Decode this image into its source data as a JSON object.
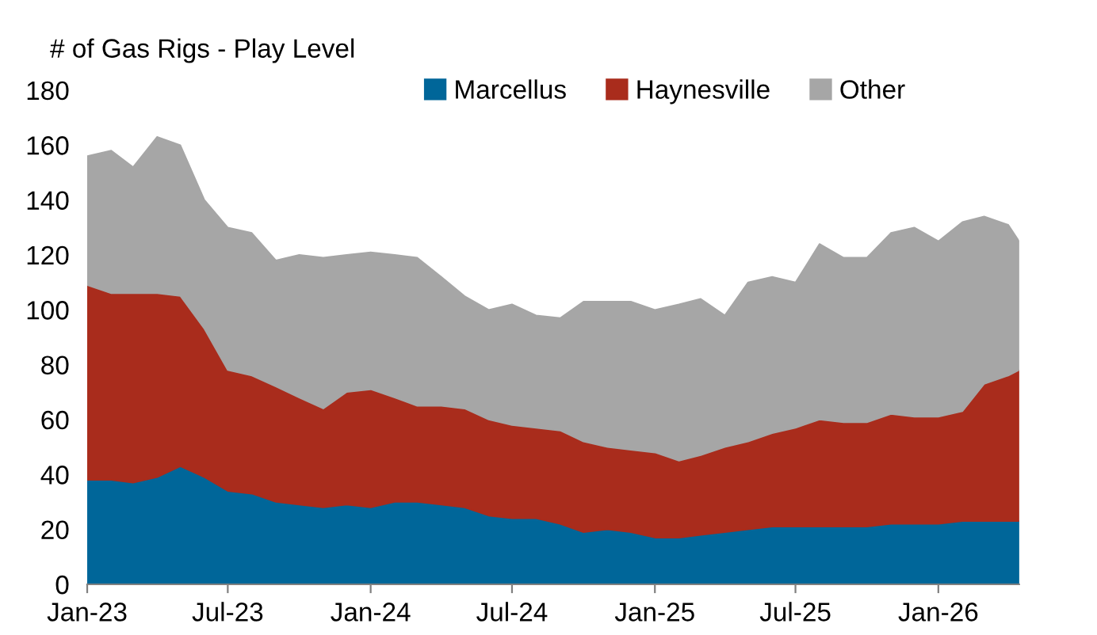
{
  "chart_data": {
    "type": "area",
    "stacked": true,
    "ylabel": "# of Gas Rigs - Play Level",
    "x": [
      "2023-01",
      "2023-02",
      "2023-03",
      "2023-04",
      "2023-05",
      "2023-06",
      "2023-07",
      "2023-08",
      "2023-09",
      "2023-10",
      "2023-11",
      "2023-12",
      "2024-01",
      "2024-02",
      "2024-03",
      "2024-04",
      "2024-05",
      "2024-06",
      "2024-07",
      "2024-08",
      "2024-09",
      "2024-10",
      "2024-11",
      "2024-12",
      "2025-01",
      "2025-02",
      "2025-03",
      "2025-04",
      "2025-05",
      "2025-06",
      "2025-07",
      "2025-08",
      "2025-09",
      "2025-10",
      "2025-11",
      "2025-12",
      "2026-01",
      "2026-02",
      "2026-03",
      "2026-04",
      "2026-04-15"
    ],
    "series": [
      {
        "name": "Marcellus",
        "color": "#006699",
        "values": [
          38,
          38,
          37,
          39,
          43,
          39,
          34,
          33,
          30,
          29,
          28,
          29,
          28,
          30,
          30,
          29,
          28,
          25,
          24,
          24,
          22,
          19,
          20,
          19,
          17,
          17,
          18,
          19,
          20,
          21,
          21,
          21,
          21,
          21,
          22,
          22,
          22,
          23,
          23,
          23,
          23
        ]
      },
      {
        "name": "Haynesville",
        "color": "#a92c1c",
        "values": [
          71,
          68,
          69,
          67,
          62,
          54,
          44,
          43,
          42,
          39,
          36,
          41,
          43,
          38,
          35,
          36,
          36,
          35,
          34,
          33,
          34,
          33,
          30,
          30,
          31,
          28,
          29,
          31,
          32,
          34,
          36,
          39,
          38,
          38,
          40,
          39,
          39,
          40,
          50,
          53,
          55
        ]
      },
      {
        "name": "Other",
        "color": "#a6a6a6",
        "values": [
          47,
          52,
          46,
          57,
          55,
          47,
          52,
          52,
          46,
          52,
          55,
          50,
          50,
          52,
          54,
          47,
          41,
          40,
          44,
          41,
          41,
          51,
          53,
          54,
          52,
          57,
          57,
          48,
          58,
          57,
          53,
          64,
          60,
          60,
          66,
          69,
          64,
          69,
          61,
          55,
          47
        ]
      }
    ],
    "xlim": [
      "2023-01",
      "2026-04-15"
    ],
    "xticks": [
      {
        "value": "2023-01",
        "label": "Jan-23"
      },
      {
        "value": "2023-07",
        "label": "Jul-23"
      },
      {
        "value": "2024-01",
        "label": "Jan-24"
      },
      {
        "value": "2024-07",
        "label": "Jul-24"
      },
      {
        "value": "2025-01",
        "label": "Jan-25"
      },
      {
        "value": "2025-07",
        "label": "Jul-25"
      },
      {
        "value": "2026-01",
        "label": "Jan-26"
      }
    ],
    "ylim": [
      0,
      180
    ],
    "yticks": [
      0,
      20,
      40,
      60,
      80,
      100,
      120,
      140,
      160,
      180
    ],
    "legend": "top",
    "grid": false
  }
}
